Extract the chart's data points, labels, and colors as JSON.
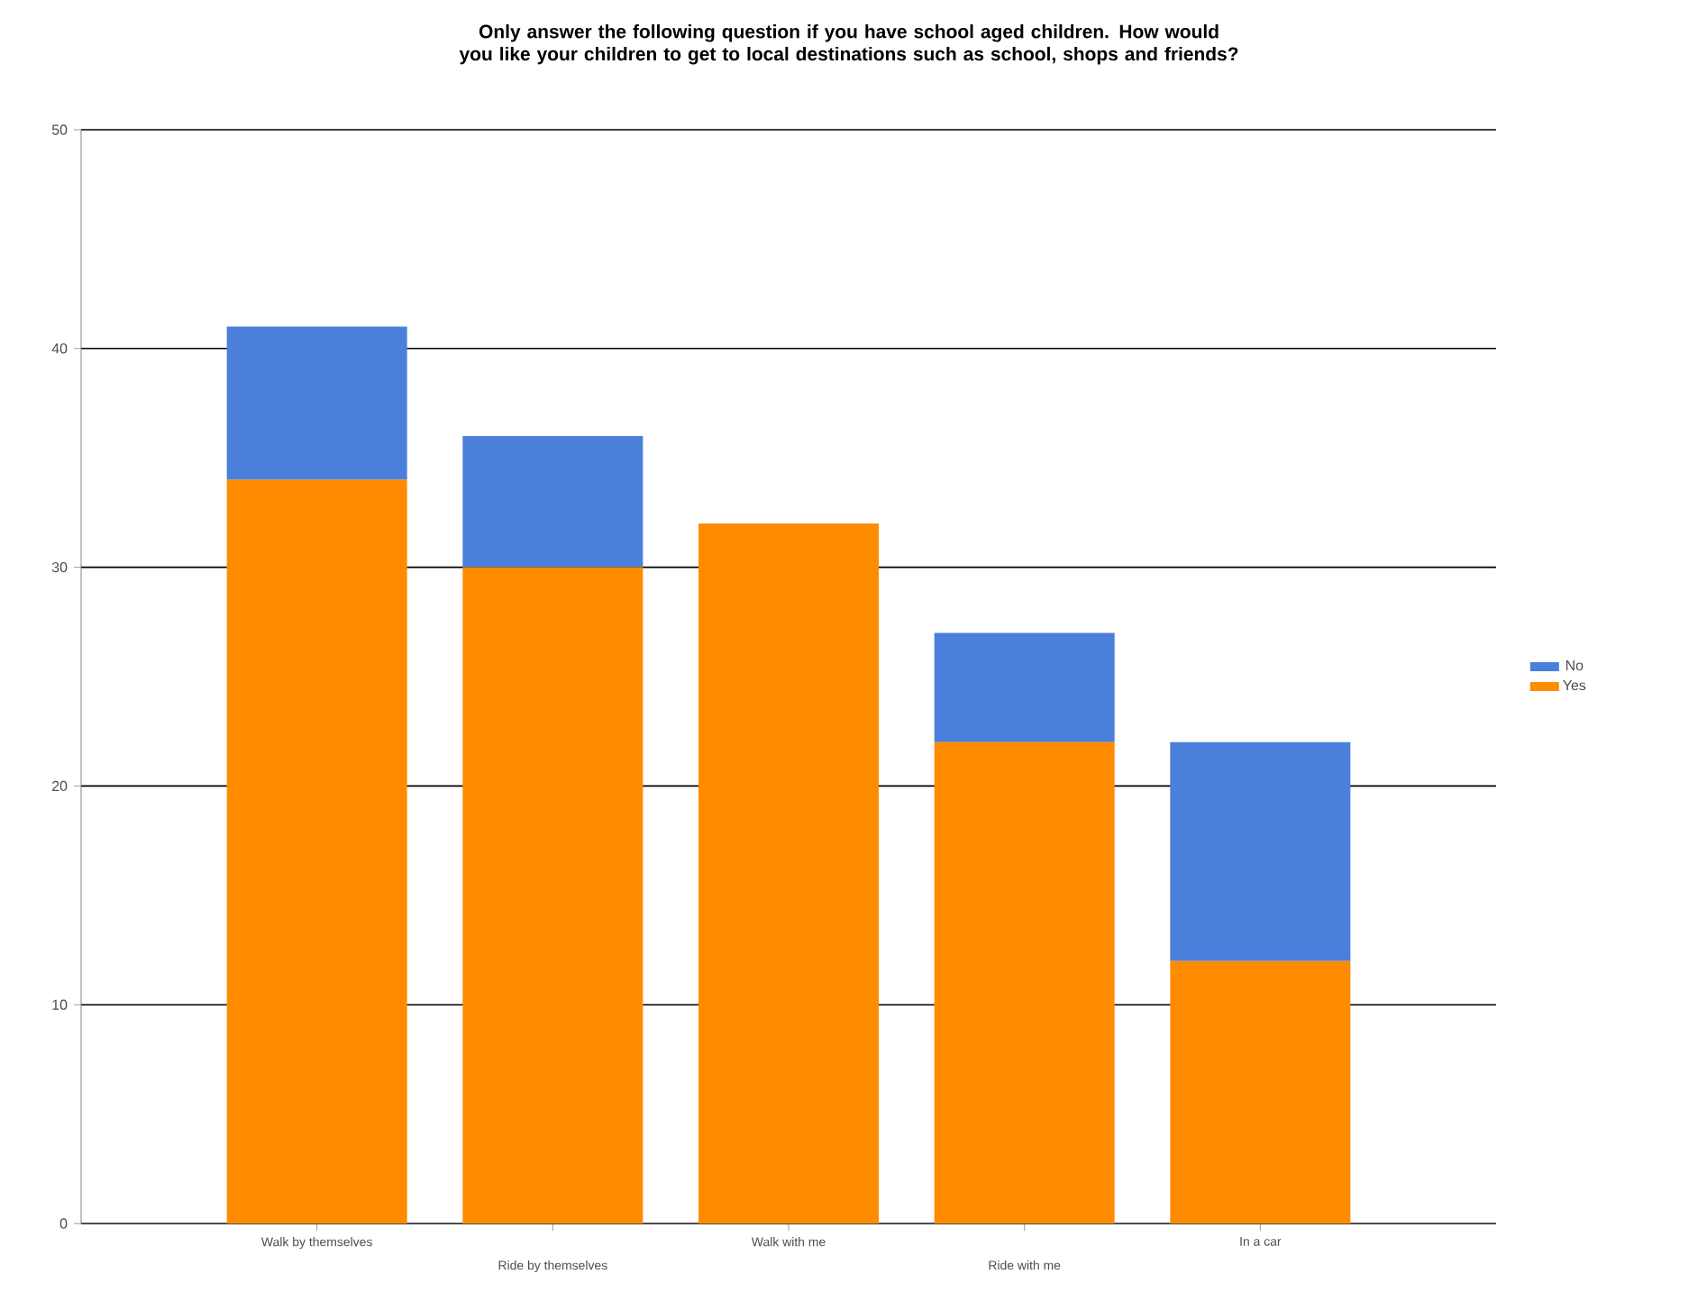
{
  "chart_data": {
    "type": "bar",
    "stacked": true,
    "title": "Only answer the following question if you have school aged children. How would you like your children to get to local destinations such as school, shops and friends?",
    "categories": [
      "Walk by themselves",
      "Ride by themselves",
      "Walk with me",
      "Ride with me",
      "In a car"
    ],
    "series": [
      {
        "name": "Yes",
        "color": "#ff8c00",
        "values": [
          34,
          30,
          32,
          22,
          12
        ]
      },
      {
        "name": "No",
        "color": "#4a7fdc",
        "values": [
          7,
          6,
          0,
          5,
          10
        ]
      }
    ],
    "ylim": [
      0,
      50
    ],
    "yticks": [
      0,
      10,
      20,
      30,
      40,
      50
    ],
    "grid": "y",
    "legend": "right"
  }
}
